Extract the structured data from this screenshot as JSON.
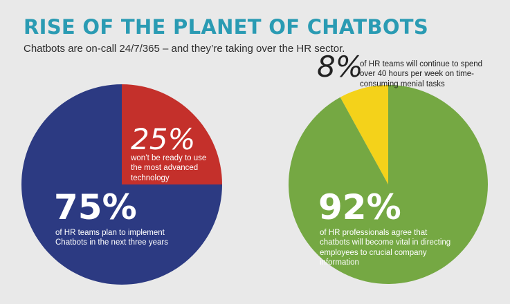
{
  "title": "RISE OF THE PLANET OF CHATBOTS",
  "subtitle": "Chatbots are on-call 24/7/365 – and they’re taking over the HR sector.",
  "colors": {
    "title": "#2a9bb3",
    "blue": "#2c3a82",
    "red": "#c4302b",
    "green": "#75a843",
    "yellow": "#f4d21a"
  },
  "chart_data": [
    {
      "type": "pie",
      "slices": [
        {
          "label": "25%",
          "value": 25,
          "text": "won’t be ready to use the most advanced technology",
          "color": "#c4302b"
        },
        {
          "label": "75%",
          "value": 75,
          "text": "of HR teams plan to implement Chatbots in the next three years",
          "color": "#2c3a82"
        }
      ]
    },
    {
      "type": "pie",
      "slices": [
        {
          "label": "8%",
          "value": 8,
          "text": "of HR teams will continue to spend over 40 hours per week on time-consuming menial tasks",
          "color": "#f4d21a"
        },
        {
          "label": "92%",
          "value": 92,
          "text": "of HR professionals agree that chatbots will become vital in directing employees to crucial company information",
          "color": "#75a843"
        }
      ]
    }
  ]
}
